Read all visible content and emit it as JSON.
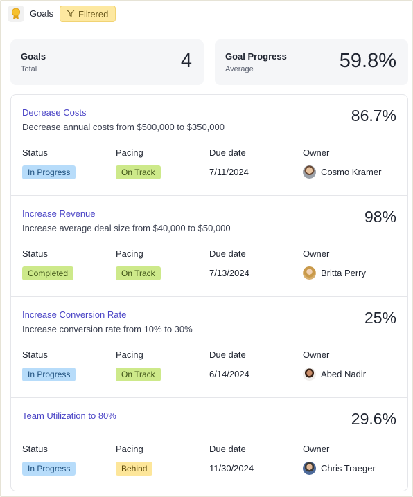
{
  "header": {
    "title": "Goals",
    "filter_label": "Filtered",
    "app_icon": "award-icon",
    "filter_icon": "funnel-icon"
  },
  "summary": [
    {
      "title": "Goals",
      "subtitle": "Total",
      "value": "4"
    },
    {
      "title": "Goal Progress",
      "subtitle": "Average",
      "value": "59.8%"
    }
  ],
  "columns": {
    "status": "Status",
    "pacing": "Pacing",
    "due_date": "Due date",
    "owner": "Owner"
  },
  "goals": [
    {
      "name": "Decrease Costs",
      "description": "Decrease annual costs from $500,000 to $350,000",
      "progress": "86.7%",
      "status": "In Progress",
      "pacing": "On Track",
      "due_date": "7/11/2024",
      "owner": "Cosmo Kramer"
    },
    {
      "name": "Increase Revenue",
      "description": "Increase average deal size from $40,000 to $50,000",
      "progress": "98%",
      "status": "Completed",
      "pacing": "On Track",
      "due_date": "7/13/2024",
      "owner": "Britta Perry"
    },
    {
      "name": "Increase Conversion Rate",
      "description": "Increase conversion rate from 10% to 30%",
      "progress": "25%",
      "status": "In Progress",
      "pacing": "On Track",
      "due_date": "6/14/2024",
      "owner": "Abed Nadir"
    },
    {
      "name": "Team Utilization to 80%",
      "description": "",
      "progress": "29.6%",
      "status": "In Progress",
      "pacing": "Behind",
      "due_date": "11/30/2024",
      "owner": "Chris Traeger"
    }
  ],
  "colors": {
    "link": "#4a44c6",
    "status_in_progress": "#b7dcfa",
    "status_completed": "#cde98a",
    "pacing_on_track": "#cde98a",
    "pacing_behind": "#fde69a"
  }
}
